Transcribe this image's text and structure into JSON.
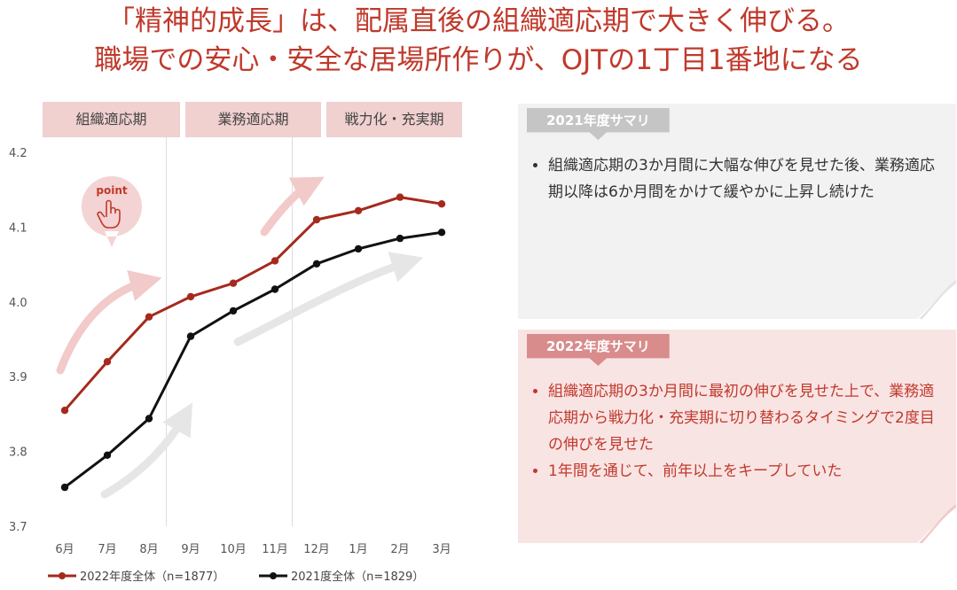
{
  "title": {
    "line1": "「精神的成長」は、配属直後の組織適応期で大きく伸びる。",
    "line2": "職場での安心・安全な居場所作りが、OJTの1丁目1番地になる"
  },
  "phases": [
    "組織適応期",
    "業務適応期",
    "戦力化・充実期"
  ],
  "point_label": "point",
  "chart_data": {
    "type": "line",
    "categories": [
      "6月",
      "7月",
      "8月",
      "9月",
      "10月",
      "11月",
      "12月",
      "1月",
      "2月",
      "3月"
    ],
    "ylim": [
      3.7,
      4.2
    ],
    "yticks": [
      "4.2",
      "4.1",
      "4.0",
      "3.9",
      "3.8",
      "3.7"
    ],
    "phase_dividers_after": [
      "8月",
      "11月"
    ],
    "series": [
      {
        "name": "2022年度全体（n=1877）",
        "color": "#a52a1d",
        "values": [
          3.855,
          3.92,
          3.98,
          4.007,
          4.025,
          4.055,
          4.11,
          4.122,
          4.14,
          4.131
        ]
      },
      {
        "name": "2021度全体（n=1829）",
        "color": "#111111",
        "values": [
          3.752,
          3.795,
          3.844,
          3.954,
          3.988,
          4.017,
          4.051,
          4.071,
          4.085,
          4.093
        ]
      }
    ]
  },
  "cards": [
    {
      "tab": "2021年度サマリ",
      "bullets": [
        "組織適応期の3か月間に大幅な伸びを見せた後、業務適応期以降は6か月間をかけて緩やかに上昇し続けた"
      ]
    },
    {
      "tab": "2022年度サマリ",
      "bullets": [
        "組織適応期の3か月間に最初の伸びを見せた上で、業務適応期から戦力化・充実期に切り替わるタイミングで2度目の伸びを見せた",
        "1年間を通じて、前年以上をキープしていた"
      ]
    }
  ],
  "colors": {
    "accent": "#c0392b",
    "phase_bg": "#f1d0d0",
    "card_gray": "#f2f2f2",
    "card_pink": "#f9e4e4"
  }
}
